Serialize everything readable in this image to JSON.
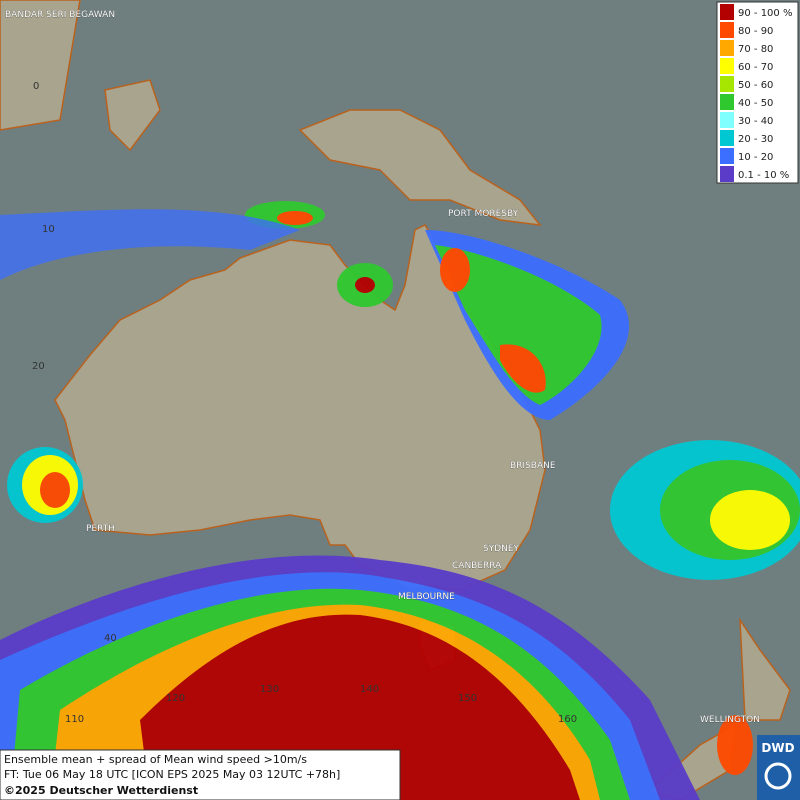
{
  "map_labels": {
    "cities": [
      "BANDAR SERI BEGAWAN",
      "PORT MORESBY",
      "BRISBANE",
      "PERTH",
      "SYDNEY",
      "CANBERRA",
      "MELBOURNE",
      "WELLINGTON"
    ],
    "latitudes": [
      "0",
      "10",
      "20",
      "40"
    ],
    "longitudes": [
      "110",
      "120",
      "130",
      "140",
      "150",
      "160"
    ]
  },
  "legend": {
    "items": [
      {
        "label": "90 - 100 %",
        "color": "#b30000"
      },
      {
        "label": "80 - 90",
        "color": "#ff4a00"
      },
      {
        "label": "70 - 80",
        "color": "#ffa800"
      },
      {
        "label": "60 - 70",
        "color": "#ffff00"
      },
      {
        "label": "50 - 60",
        "color": "#a6e600"
      },
      {
        "label": "40 - 50",
        "color": "#2fc82f"
      },
      {
        "label": "30 - 40",
        "color": "#80ffff"
      },
      {
        "label": "20 - 30",
        "color": "#00c8d2"
      },
      {
        "label": "10 - 20",
        "color": "#3c6eff"
      },
      {
        "label": "0.1 - 10 %",
        "color": "#5a3cc8"
      }
    ]
  },
  "footer": {
    "line1": "Ensemble mean + spread of Mean wind speed >10m/s",
    "line2": "FT: Tue 06 May 18 UTC [ICON EPS 2025 May 03 12UTC +78h]",
    "line3": "©2025 Deutscher Wetterdienst"
  },
  "logo": "DWD"
}
